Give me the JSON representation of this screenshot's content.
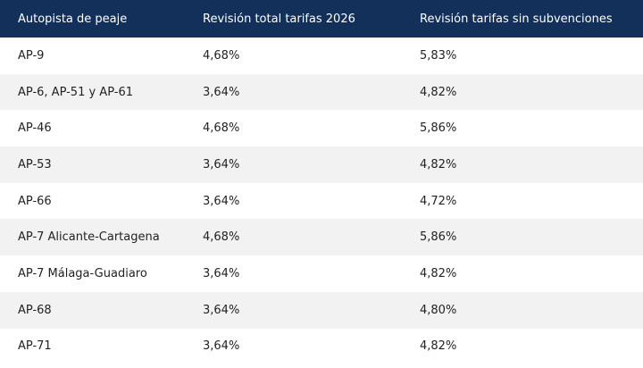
{
  "table": {
    "header": [
      "Autopista de peaje",
      "Revisión total tarifas 2026",
      "Revisión tarifas sin subvenciones"
    ],
    "rows": [
      [
        "AP-9",
        "4,68%",
        "5,83%"
      ],
      [
        "AP-6, AP-51 y AP-61",
        "3,64%",
        "4,82%"
      ],
      [
        "AP-46",
        "4,68%",
        "5,86%"
      ],
      [
        "AP-53",
        "3,64%",
        "4,82%"
      ],
      [
        "AP-66",
        "3,64%",
        "4,72%"
      ],
      [
        "AP-7 Alicante-Cartagena",
        "4,68%",
        "5,86%"
      ],
      [
        "AP-7 Málaga-Guadiaro",
        "3,64%",
        "4,82%"
      ],
      [
        "AP-68",
        "3,64%",
        "4,80%"
      ],
      [
        "AP-71",
        "3,64%",
        "4,82%"
      ]
    ]
  }
}
